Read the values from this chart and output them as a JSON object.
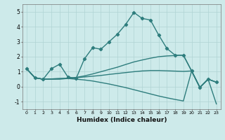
{
  "xlabel": "Humidex (Indice chaleur)",
  "xlim": [
    -0.5,
    23.5
  ],
  "ylim": [
    -1.5,
    5.5
  ],
  "yticks": [
    -1,
    0,
    1,
    2,
    3,
    4,
    5
  ],
  "xticks": [
    0,
    1,
    2,
    3,
    4,
    5,
    6,
    7,
    8,
    9,
    10,
    11,
    12,
    13,
    14,
    15,
    16,
    17,
    18,
    19,
    20,
    21,
    22,
    23
  ],
  "bg_color": "#cdeaea",
  "line_color": "#2e7d7d",
  "grid_color": "#b0d4d4",
  "lines": [
    {
      "x": [
        0,
        1,
        2,
        3,
        4,
        5,
        6,
        7,
        8,
        9,
        10,
        11,
        12,
        13,
        14,
        15,
        16,
        17,
        18,
        19,
        20,
        21,
        22,
        23
      ],
      "y": [
        1.2,
        0.6,
        0.5,
        1.2,
        1.5,
        0.65,
        0.55,
        1.85,
        2.6,
        2.5,
        3.0,
        3.5,
        4.15,
        4.95,
        4.55,
        4.45,
        3.45,
        2.55,
        2.1,
        2.1,
        1.05,
        -0.05,
        0.5,
        0.3
      ],
      "marker": "D",
      "markersize": 2.2,
      "linewidth": 1.0
    },
    {
      "x": [
        0,
        1,
        2,
        3,
        4,
        5,
        6,
        7,
        8,
        9,
        10,
        11,
        12,
        13,
        14,
        15,
        16,
        17,
        18,
        19,
        20,
        21,
        22,
        23
      ],
      "y": [
        1.2,
        0.6,
        0.5,
        0.52,
        0.54,
        0.56,
        0.62,
        0.72,
        0.85,
        1.0,
        1.15,
        1.3,
        1.48,
        1.65,
        1.78,
        1.9,
        2.0,
        2.05,
        2.08,
        2.1,
        1.05,
        -0.05,
        0.5,
        0.3
      ],
      "marker": null,
      "linewidth": 1.0
    },
    {
      "x": [
        0,
        1,
        2,
        3,
        4,
        5,
        6,
        7,
        8,
        9,
        10,
        11,
        12,
        13,
        14,
        15,
        16,
        17,
        18,
        19,
        20,
        21,
        22,
        23
      ],
      "y": [
        1.2,
        0.6,
        0.5,
        0.52,
        0.54,
        0.56,
        0.6,
        0.65,
        0.7,
        0.75,
        0.82,
        0.88,
        0.94,
        1.0,
        1.05,
        1.08,
        1.08,
        1.06,
        1.04,
        1.02,
        1.05,
        -0.05,
        0.5,
        0.3
      ],
      "marker": null,
      "linewidth": 1.0
    },
    {
      "x": [
        0,
        1,
        2,
        3,
        4,
        5,
        6,
        7,
        8,
        9,
        10,
        11,
        12,
        13,
        14,
        15,
        16,
        17,
        18,
        19,
        20,
        21,
        22,
        23
      ],
      "y": [
        1.2,
        0.6,
        0.5,
        0.5,
        0.5,
        0.55,
        0.5,
        0.45,
        0.38,
        0.28,
        0.18,
        0.06,
        -0.06,
        -0.2,
        -0.34,
        -0.48,
        -0.62,
        -0.74,
        -0.85,
        -0.95,
        1.05,
        -0.05,
        0.5,
        -1.15
      ],
      "marker": null,
      "linewidth": 1.0
    }
  ]
}
